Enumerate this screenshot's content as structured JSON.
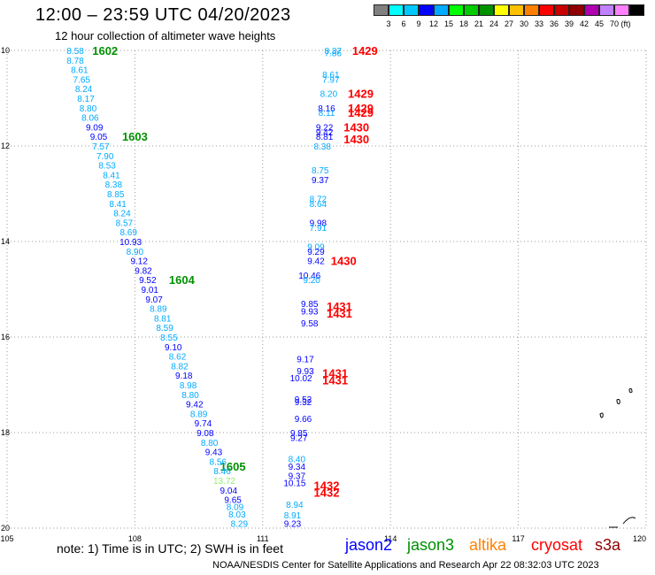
{
  "title": "12:00 – 23:59 UTC 04/20/2023",
  "subtitle": "12 hour collection of altimeter wave heights",
  "colorbar": {
    "colors": [
      "#808080",
      "#00ffff",
      "#00c8ff",
      "#0000ff",
      "#00aaff",
      "#00ff00",
      "#00cc00",
      "#009000",
      "#ffff00",
      "#ffc000",
      "#ff8000",
      "#ff0000",
      "#c80000",
      "#900000",
      "#b000b0",
      "#c080ff",
      "#ff80ff",
      "#000000"
    ],
    "labels": [
      "3",
      "6",
      "9",
      "12",
      "15",
      "18",
      "21",
      "24",
      "27",
      "30",
      "33",
      "36",
      "39",
      "42",
      "45",
      "70"
    ],
    "unit": "(ft)"
  },
  "axes": {
    "lon_ticks": [
      "105",
      "108",
      "111",
      "114",
      "117",
      "120"
    ],
    "lat_ticks": [
      "10",
      "12",
      "14",
      "16",
      "18",
      "20"
    ]
  },
  "note": "note:  1) Time is in UTC;  2) SWH is in feet",
  "legend": [
    {
      "label": "jason2",
      "color": "#0000ff"
    },
    {
      "label": "jason3",
      "color": "#009000"
    },
    {
      "label": "altika",
      "color": "#ff8000"
    },
    {
      "label": "cryosat",
      "color": "#ff0000"
    },
    {
      "label": "s3a",
      "color": "#900000"
    }
  ],
  "credit": "NOAA/NESDIS Center for Satellite Applications and Research    Apr 22 08:32:03 UTC 2023",
  "tracks": [
    {
      "label": "1602",
      "lon": 107.3,
      "lat": 10.0,
      "color": "#009000"
    },
    {
      "label": "1603",
      "lon": 108.0,
      "lat": 11.8,
      "color": "#009000"
    },
    {
      "label": "1604",
      "lon": 109.1,
      "lat": 14.8,
      "color": "#009000"
    },
    {
      "label": "1605",
      "lon": 110.3,
      "lat": 18.7,
      "color": "#009000"
    },
    {
      "label": "1429",
      "lon": 113.4,
      "lat": 10.0,
      "color": "#ff0000"
    },
    {
      "label": "1429",
      "lon": 113.3,
      "lat": 10.9,
      "color": "#ff0000"
    },
    {
      "label": "1429",
      "lon": 113.3,
      "lat": 11.2,
      "color": "#ff0000"
    },
    {
      "label": "1429",
      "lon": 113.3,
      "lat": 11.3,
      "color": "#ff0000"
    },
    {
      "label": "1430",
      "lon": 113.2,
      "lat": 11.6,
      "color": "#ff0000"
    },
    {
      "label": "1430",
      "lon": 113.2,
      "lat": 11.85,
      "color": "#ff0000"
    },
    {
      "label": "1430",
      "lon": 112.9,
      "lat": 14.4,
      "color": "#ff0000"
    },
    {
      "label": "1431",
      "lon": 112.8,
      "lat": 15.35,
      "color": "#ff0000"
    },
    {
      "label": "1431",
      "lon": 112.8,
      "lat": 15.5,
      "color": "#ff0000"
    },
    {
      "label": "1431",
      "lon": 112.7,
      "lat": 16.75,
      "color": "#ff0000"
    },
    {
      "label": "1431",
      "lon": 112.7,
      "lat": 16.9,
      "color": "#ff0000"
    },
    {
      "label": "1432",
      "lon": 112.5,
      "lat": 19.1,
      "color": "#ff0000"
    },
    {
      "label": "1432",
      "lon": 112.5,
      "lat": 19.25,
      "color": "#ff0000"
    }
  ],
  "points": [
    {
      "text": "8.58",
      "lon": 106.6,
      "lat": 10.0,
      "color": "#00aaff"
    },
    {
      "text": "8.78",
      "lon": 106.6,
      "lat": 10.2,
      "color": "#00aaff"
    },
    {
      "text": "8.61",
      "lon": 106.7,
      "lat": 10.4,
      "color": "#00aaff"
    },
    {
      "text": "7.65",
      "lon": 106.75,
      "lat": 10.6,
      "color": "#00aaff"
    },
    {
      "text": "8.24",
      "lon": 106.8,
      "lat": 10.8,
      "color": "#00aaff"
    },
    {
      "text": "8.17",
      "lon": 106.85,
      "lat": 11.0,
      "color": "#00aaff"
    },
    {
      "text": "8.80",
      "lon": 106.9,
      "lat": 11.2,
      "color": "#00aaff"
    },
    {
      "text": "8.06",
      "lon": 106.95,
      "lat": 11.4,
      "color": "#00aaff"
    },
    {
      "text": "9.09",
      "lon": 107.05,
      "lat": 11.6,
      "color": "#0000ff"
    },
    {
      "text": "9.05",
      "lon": 107.15,
      "lat": 11.8,
      "color": "#0000ff"
    },
    {
      "text": "7.57",
      "lon": 107.2,
      "lat": 12.0,
      "color": "#00aaff"
    },
    {
      "text": "7.90",
      "lon": 107.3,
      "lat": 12.2,
      "color": "#00aaff"
    },
    {
      "text": "8.53",
      "lon": 107.35,
      "lat": 12.4,
      "color": "#00aaff"
    },
    {
      "text": "8.41",
      "lon": 107.45,
      "lat": 12.6,
      "color": "#00aaff"
    },
    {
      "text": "8.38",
      "lon": 107.5,
      "lat": 12.8,
      "color": "#00aaff"
    },
    {
      "text": "8.85",
      "lon": 107.55,
      "lat": 13.0,
      "color": "#00aaff"
    },
    {
      "text": "8.41",
      "lon": 107.6,
      "lat": 13.2,
      "color": "#00aaff"
    },
    {
      "text": "8.24",
      "lon": 107.7,
      "lat": 13.4,
      "color": "#00aaff"
    },
    {
      "text": "8.57",
      "lon": 107.75,
      "lat": 13.6,
      "color": "#00aaff"
    },
    {
      "text": "8.69",
      "lon": 107.85,
      "lat": 13.8,
      "color": "#00aaff"
    },
    {
      "text": "10.93",
      "lon": 107.9,
      "lat": 14.0,
      "color": "#0000ff"
    },
    {
      "text": "8.90",
      "lon": 108.0,
      "lat": 14.2,
      "color": "#00aaff"
    },
    {
      "text": "9.12",
      "lon": 108.1,
      "lat": 14.4,
      "color": "#0000ff"
    },
    {
      "text": "9.82",
      "lon": 108.2,
      "lat": 14.6,
      "color": "#0000ff"
    },
    {
      "text": "9.52",
      "lon": 108.3,
      "lat": 14.8,
      "color": "#0000ff"
    },
    {
      "text": "9.01",
      "lon": 108.35,
      "lat": 15.0,
      "color": "#0000ff"
    },
    {
      "text": "9.07",
      "lon": 108.45,
      "lat": 15.2,
      "color": "#0000ff"
    },
    {
      "text": "8.89",
      "lon": 108.55,
      "lat": 15.4,
      "color": "#00aaff"
    },
    {
      "text": "8.81",
      "lon": 108.65,
      "lat": 15.6,
      "color": "#00aaff"
    },
    {
      "text": "8.59",
      "lon": 108.7,
      "lat": 15.8,
      "color": "#00aaff"
    },
    {
      "text": "8.55",
      "lon": 108.8,
      "lat": 16.0,
      "color": "#00aaff"
    },
    {
      "text": "9.10",
      "lon": 108.9,
      "lat": 16.2,
      "color": "#0000ff"
    },
    {
      "text": "8.62",
      "lon": 109.0,
      "lat": 16.4,
      "color": "#00aaff"
    },
    {
      "text": "8.82",
      "lon": 109.05,
      "lat": 16.6,
      "color": "#00aaff"
    },
    {
      "text": "9.18",
      "lon": 109.15,
      "lat": 16.8,
      "color": "#0000ff"
    },
    {
      "text": "8.98",
      "lon": 109.25,
      "lat": 17.0,
      "color": "#00aaff"
    },
    {
      "text": "8.80",
      "lon": 109.3,
      "lat": 17.2,
      "color": "#00aaff"
    },
    {
      "text": "9.42",
      "lon": 109.4,
      "lat": 17.4,
      "color": "#0000ff"
    },
    {
      "text": "8.89",
      "lon": 109.5,
      "lat": 17.6,
      "color": "#00aaff"
    },
    {
      "text": "9.74",
      "lon": 109.6,
      "lat": 17.8,
      "color": "#0000ff"
    },
    {
      "text": "9.08",
      "lon": 109.65,
      "lat": 18.0,
      "color": "#0000ff"
    },
    {
      "text": "8.80",
      "lon": 109.75,
      "lat": 18.2,
      "color": "#00aaff"
    },
    {
      "text": "9.43",
      "lon": 109.85,
      "lat": 18.4,
      "color": "#0000ff"
    },
    {
      "text": "8.56",
      "lon": 109.95,
      "lat": 18.6,
      "color": "#00aaff"
    },
    {
      "text": "8.46",
      "lon": 110.05,
      "lat": 18.8,
      "color": "#00aaff"
    },
    {
      "text": "13.72",
      "lon": 110.1,
      "lat": 19.0,
      "color": "#90ee70"
    },
    {
      "text": "9.04",
      "lon": 110.2,
      "lat": 19.2,
      "color": "#0000ff"
    },
    {
      "text": "9.65",
      "lon": 110.3,
      "lat": 19.4,
      "color": "#0000ff"
    },
    {
      "text": "8.09",
      "lon": 110.35,
      "lat": 19.55,
      "color": "#00aaff"
    },
    {
      "text": "8.03",
      "lon": 110.4,
      "lat": 19.7,
      "color": "#00aaff"
    },
    {
      "text": "8.29",
      "lon": 110.45,
      "lat": 19.9,
      "color": "#00aaff"
    },
    {
      "text": "8.37",
      "lon": 112.65,
      "lat": 10.0,
      "color": "#00aaff"
    },
    {
      "text": "7.86",
      "lon": 112.65,
      "lat": 10.05,
      "color": "#00aaff"
    },
    {
      "text": "8.61",
      "lon": 112.6,
      "lat": 10.5,
      "color": "#00aaff"
    },
    {
      "text": "7.97",
      "lon": 112.6,
      "lat": 10.6,
      "color": "#00aaff"
    },
    {
      "text": "8.20",
      "lon": 112.55,
      "lat": 10.9,
      "color": "#00aaff"
    },
    {
      "text": "8.16",
      "lon": 112.5,
      "lat": 11.2,
      "color": "#0000ff"
    },
    {
      "text": "8.11",
      "lon": 112.5,
      "lat": 11.3,
      "color": "#00aaff"
    },
    {
      "text": "9.22",
      "lon": 112.45,
      "lat": 11.6,
      "color": "#0000ff"
    },
    {
      "text": "9.42",
      "lon": 112.45,
      "lat": 11.7,
      "color": "#0000ff"
    },
    {
      "text": "8.81",
      "lon": 112.45,
      "lat": 11.8,
      "color": "#0000ff"
    },
    {
      "text": "8.38",
      "lon": 112.4,
      "lat": 12.0,
      "color": "#00aaff"
    },
    {
      "text": "8.75",
      "lon": 112.35,
      "lat": 12.5,
      "color": "#00aaff"
    },
    {
      "text": "9.37",
      "lon": 112.35,
      "lat": 12.7,
      "color": "#0000ff"
    },
    {
      "text": "8.72",
      "lon": 112.3,
      "lat": 13.1,
      "color": "#00aaff"
    },
    {
      "text": "8.64",
      "lon": 112.3,
      "lat": 13.2,
      "color": "#00aaff"
    },
    {
      "text": "9.98",
      "lon": 112.3,
      "lat": 13.6,
      "color": "#0000ff"
    },
    {
      "text": "7.91",
      "lon": 112.3,
      "lat": 13.7,
      "color": "#00aaff"
    },
    {
      "text": "9.09",
      "lon": 112.25,
      "lat": 14.1,
      "color": "#00aaff"
    },
    {
      "text": "9.29",
      "lon": 112.25,
      "lat": 14.2,
      "color": "#0000ff"
    },
    {
      "text": "9.42",
      "lon": 112.25,
      "lat": 14.4,
      "color": "#0000ff"
    },
    {
      "text": "10.46",
      "lon": 112.1,
      "lat": 14.7,
      "color": "#0000ff"
    },
    {
      "text": "9.20",
      "lon": 112.15,
      "lat": 14.8,
      "color": "#00aaff"
    },
    {
      "text": "9.85",
      "lon": 112.1,
      "lat": 15.3,
      "color": "#0000ff"
    },
    {
      "text": "9.93",
      "lon": 112.1,
      "lat": 15.45,
      "color": "#0000ff"
    },
    {
      "text": "9.58",
      "lon": 112.1,
      "lat": 15.7,
      "color": "#0000ff"
    },
    {
      "text": "9.17",
      "lon": 112.0,
      "lat": 16.45,
      "color": "#0000ff"
    },
    {
      "text": "9.93",
      "lon": 112.0,
      "lat": 16.7,
      "color": "#0000ff"
    },
    {
      "text": "10.02",
      "lon": 111.9,
      "lat": 16.85,
      "color": "#0000ff"
    },
    {
      "text": "9.52",
      "lon": 111.95,
      "lat": 17.3,
      "color": "#0000ff"
    },
    {
      "text": "9.32",
      "lon": 111.95,
      "lat": 17.35,
      "color": "#0000ff"
    },
    {
      "text": "9.66",
      "lon": 111.95,
      "lat": 17.7,
      "color": "#0000ff"
    },
    {
      "text": "9.85",
      "lon": 111.85,
      "lat": 18.0,
      "color": "#0000ff"
    },
    {
      "text": "9.27",
      "lon": 111.85,
      "lat": 18.1,
      "color": "#0000ff"
    },
    {
      "text": "8.40",
      "lon": 111.8,
      "lat": 18.55,
      "color": "#00aaff"
    },
    {
      "text": "9.34",
      "lon": 111.8,
      "lat": 18.7,
      "color": "#0000ff"
    },
    {
      "text": "9.37",
      "lon": 111.8,
      "lat": 18.9,
      "color": "#0000ff"
    },
    {
      "text": "10.15",
      "lon": 111.75,
      "lat": 19.05,
      "color": "#0000ff"
    },
    {
      "text": "8.94",
      "lon": 111.75,
      "lat": 19.5,
      "color": "#00aaff"
    },
    {
      "text": "8.91",
      "lon": 111.7,
      "lat": 19.72,
      "color": "#00aaff"
    },
    {
      "text": "9.23",
      "lon": 111.7,
      "lat": 19.9,
      "color": "#0000ff"
    }
  ]
}
